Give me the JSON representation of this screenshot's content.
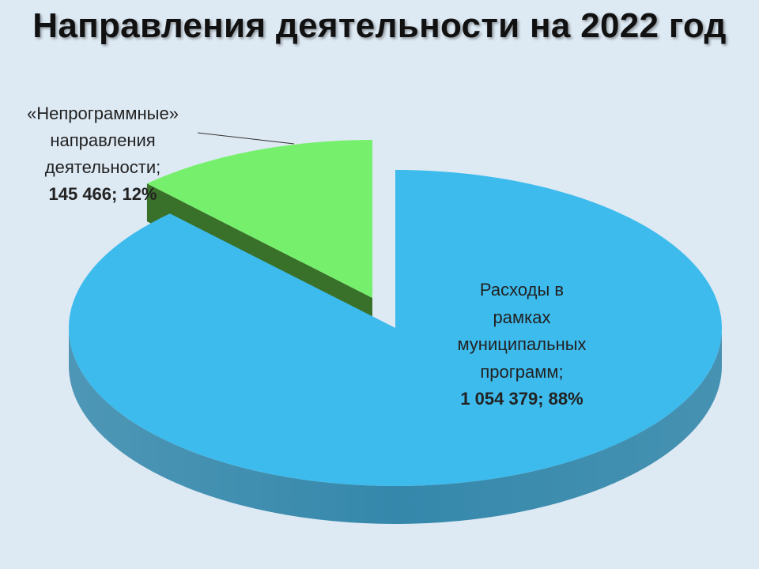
{
  "title": "Направления деятельности на 2022 год",
  "chart_data": {
    "type": "pie",
    "title": "Направления деятельности на 2022 год",
    "style": "3d-exploded",
    "slices": [
      {
        "label_lines": [
          "Расходы в",
          "рамках",
          "муниципальных",
          "программ;"
        ],
        "value": 1054379,
        "value_label": "1 054 379; 88%",
        "percent": 88,
        "color": "#3dbbed",
        "side_color": "#3588ab"
      },
      {
        "label_lines": [
          "«Непрограммные»",
          "направления",
          "деятельности;"
        ],
        "value": 145466,
        "value_label": "145 466; 12%",
        "percent": 12,
        "color": "#76f06c",
        "side_color": "#2f6a1f"
      }
    ]
  }
}
